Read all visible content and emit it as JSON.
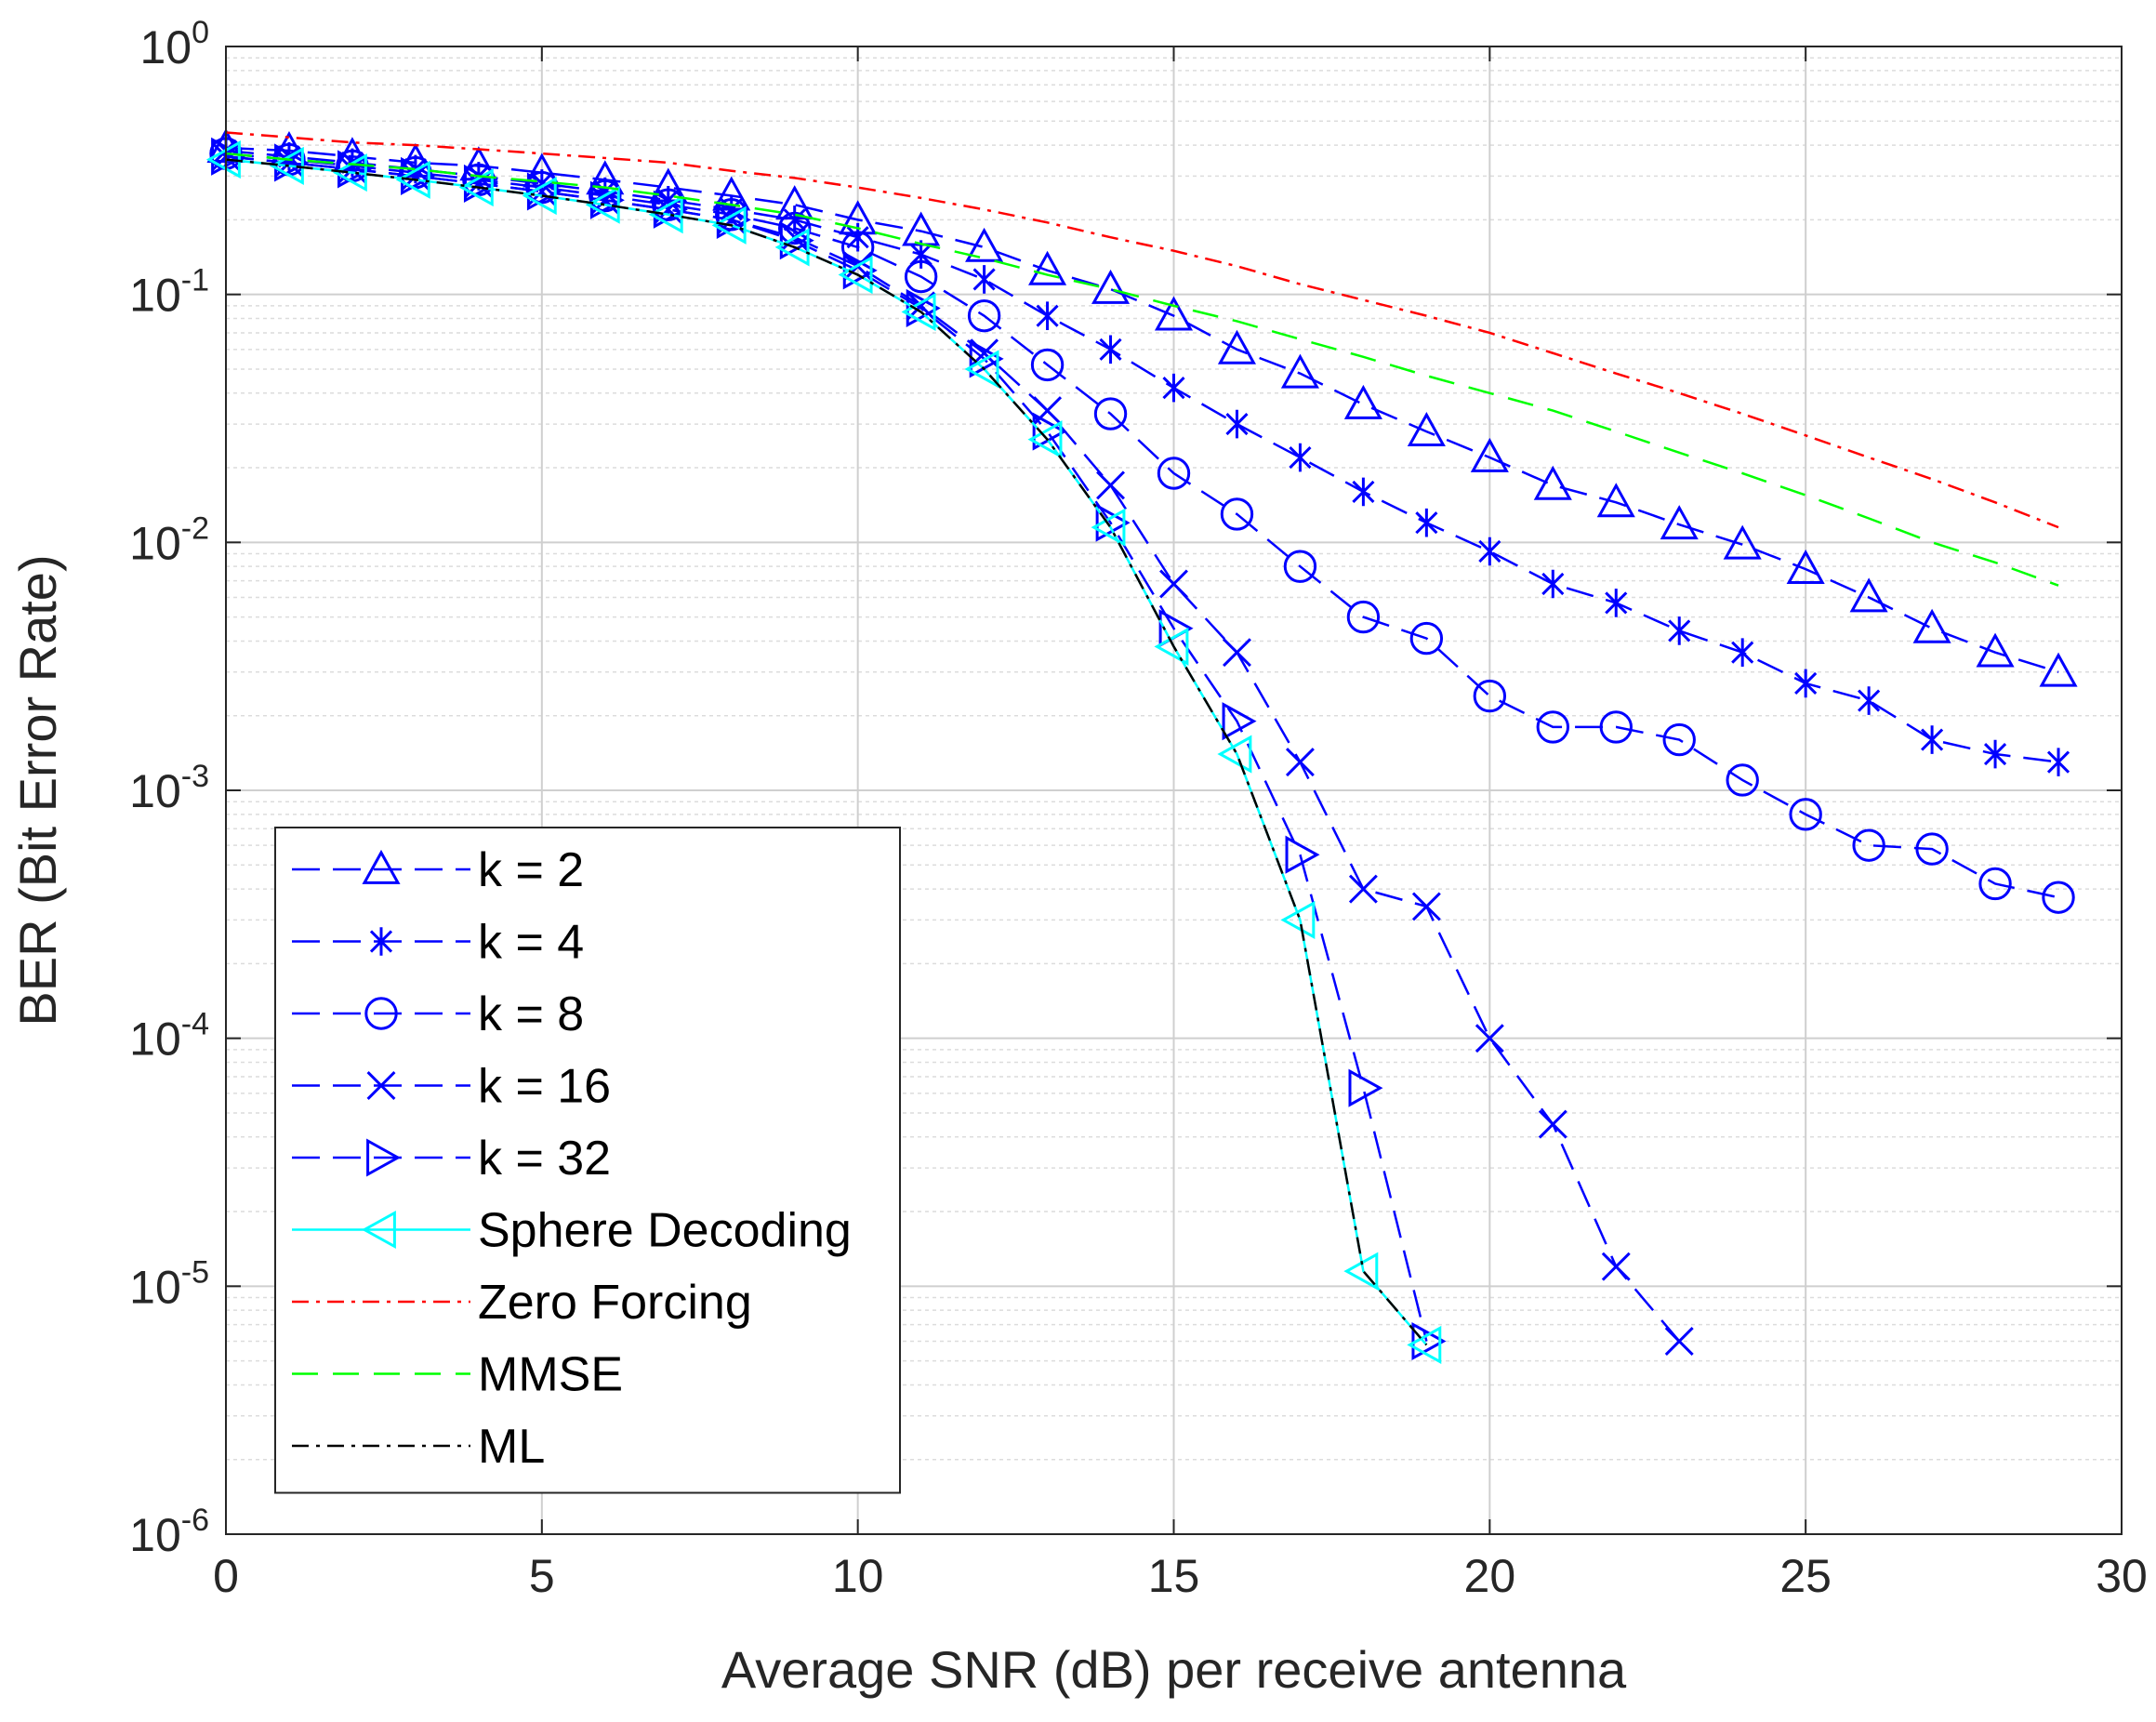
{
  "chart_data": {
    "type": "line",
    "title": "",
    "xlabel": "Average SNR (dB) per receive antenna",
    "ylabel": "BER (Bit Error Rate)",
    "xlim": [
      0,
      30
    ],
    "ylim": [
      1e-06,
      1
    ],
    "yscale": "log",
    "grid": true,
    "legend_position": "bottom-left",
    "x_ticks": [
      "0",
      "5",
      "10",
      "15",
      "20",
      "25",
      "30"
    ],
    "y_ticks": [
      {
        "base": "10",
        "exp": "0"
      },
      {
        "base": "10",
        "exp": "-1"
      },
      {
        "base": "10",
        "exp": "-2"
      },
      {
        "base": "10",
        "exp": "-3"
      },
      {
        "base": "10",
        "exp": "-4"
      },
      {
        "base": "10",
        "exp": "-5"
      },
      {
        "base": "10",
        "exp": "-6"
      }
    ],
    "series": [
      {
        "name": "k = 2",
        "color": "#0000ff",
        "dash": "long-dash",
        "marker": "triangle-up",
        "x": [
          0,
          1,
          2,
          3,
          4,
          5,
          6,
          7,
          8,
          9,
          10,
          11,
          12,
          13,
          14,
          15,
          16,
          17,
          18,
          19,
          20,
          21,
          22,
          23,
          24,
          25,
          26,
          27,
          28,
          29
        ],
        "y": [
          0.39,
          0.38,
          0.36,
          0.34,
          0.33,
          0.31,
          0.29,
          0.27,
          0.25,
          0.23,
          0.2,
          0.18,
          0.155,
          0.125,
          0.105,
          0.082,
          0.06,
          0.048,
          0.036,
          0.028,
          0.022,
          0.017,
          0.0145,
          0.0118,
          0.0098,
          0.0078,
          0.006,
          0.0045,
          0.0036,
          0.003
        ]
      },
      {
        "name": "k = 4",
        "color": "#0000ff",
        "dash": "long-dash",
        "marker": "asterisk",
        "x": [
          0,
          1,
          2,
          3,
          4,
          5,
          6,
          7,
          8,
          9,
          10,
          11,
          12,
          13,
          14,
          15,
          16,
          17,
          18,
          19,
          20,
          21,
          22,
          23,
          24,
          25,
          26,
          27,
          28,
          29
        ],
        "y": [
          0.38,
          0.36,
          0.34,
          0.32,
          0.3,
          0.28,
          0.26,
          0.24,
          0.22,
          0.2,
          0.17,
          0.145,
          0.115,
          0.082,
          0.06,
          0.042,
          0.03,
          0.022,
          0.016,
          0.012,
          0.0092,
          0.0068,
          0.0057,
          0.0044,
          0.0036,
          0.0027,
          0.0023,
          0.0016,
          0.0014,
          0.0013
        ]
      },
      {
        "name": "k = 8",
        "color": "#0000ff",
        "dash": "long-dash",
        "marker": "circle",
        "x": [
          0,
          1,
          2,
          3,
          4,
          5,
          6,
          7,
          8,
          9,
          10,
          11,
          12,
          13,
          14,
          15,
          16,
          17,
          18,
          19,
          20,
          21,
          22,
          23,
          24,
          25,
          26,
          27,
          28,
          29
        ],
        "y": [
          0.37,
          0.35,
          0.33,
          0.31,
          0.29,
          0.27,
          0.25,
          0.23,
          0.21,
          0.185,
          0.155,
          0.118,
          0.082,
          0.052,
          0.033,
          0.019,
          0.013,
          0.008,
          0.005,
          0.0041,
          0.0024,
          0.0018,
          0.0018,
          0.0016,
          0.0011,
          0.0008,
          0.0006,
          0.00058,
          0.00042,
          0.00037
        ]
      },
      {
        "name": "k = 16",
        "color": "#0000ff",
        "dash": "long-dash",
        "marker": "x",
        "x": [
          0,
          1,
          2,
          3,
          4,
          5,
          6,
          7,
          8,
          9,
          10,
          11,
          12,
          13,
          14,
          15,
          16,
          17,
          18,
          19,
          20,
          21,
          22,
          23
        ],
        "y": [
          0.36,
          0.34,
          0.32,
          0.3,
          0.28,
          0.26,
          0.24,
          0.22,
          0.2,
          0.17,
          0.13,
          0.09,
          0.058,
          0.034,
          0.017,
          0.0068,
          0.0036,
          0.0013,
          0.0004,
          0.00034,
          0.0001,
          4.5e-05,
          1.2e-05,
          6e-06
        ]
      },
      {
        "name": "k = 32",
        "color": "#0000ff",
        "dash": "long-dash",
        "marker": "triangle-right",
        "x": [
          0,
          1,
          2,
          3,
          4,
          5,
          6,
          7,
          8,
          9,
          10,
          11,
          12,
          13,
          14,
          15,
          16,
          17,
          18,
          19
        ],
        "y": [
          0.36,
          0.34,
          0.32,
          0.3,
          0.28,
          0.26,
          0.24,
          0.22,
          0.2,
          0.165,
          0.125,
          0.088,
          0.055,
          0.028,
          0.012,
          0.0045,
          0.0019,
          0.00055,
          6.3e-05,
          6e-06
        ]
      },
      {
        "name": "Sphere Decoding",
        "color": "#00ffff",
        "dash": "solid",
        "marker": "triangle-left",
        "x": [
          0,
          1,
          2,
          3,
          4,
          5,
          6,
          7,
          8,
          9,
          10,
          11,
          12,
          13,
          14,
          15,
          16,
          17,
          18,
          19
        ],
        "y": [
          0.35,
          0.33,
          0.31,
          0.29,
          0.27,
          0.25,
          0.23,
          0.21,
          0.19,
          0.155,
          0.12,
          0.085,
          0.05,
          0.026,
          0.0115,
          0.0038,
          0.0014,
          0.0003,
          1.15e-05,
          5.8e-06
        ]
      },
      {
        "name": "Zero Forcing",
        "color": "#ff0000",
        "dash": "dash-dot",
        "marker": "none",
        "x": [
          0,
          1,
          2,
          3,
          4,
          5,
          6,
          7,
          8,
          9,
          10,
          11,
          12,
          13,
          14,
          15,
          16,
          17,
          18,
          19,
          20,
          21,
          22,
          23,
          24,
          25,
          26,
          27,
          28,
          29
        ],
        "y": [
          0.45,
          0.43,
          0.41,
          0.4,
          0.385,
          0.37,
          0.355,
          0.34,
          0.315,
          0.295,
          0.27,
          0.245,
          0.22,
          0.195,
          0.17,
          0.15,
          0.13,
          0.11,
          0.095,
          0.082,
          0.07,
          0.058,
          0.048,
          0.04,
          0.033,
          0.027,
          0.022,
          0.018,
          0.0145,
          0.0115
        ]
      },
      {
        "name": "MMSE",
        "color": "#00ff00",
        "dash": "dashed",
        "marker": "none",
        "x": [
          0,
          1,
          2,
          3,
          4,
          5,
          6,
          7,
          8,
          9,
          10,
          11,
          12,
          13,
          14,
          15,
          16,
          17,
          18,
          19,
          20,
          21,
          22,
          23,
          24,
          25,
          26,
          27,
          28,
          29
        ],
        "y": [
          0.37,
          0.35,
          0.335,
          0.32,
          0.3,
          0.285,
          0.27,
          0.25,
          0.23,
          0.21,
          0.185,
          0.16,
          0.14,
          0.12,
          0.105,
          0.09,
          0.078,
          0.066,
          0.056,
          0.047,
          0.04,
          0.034,
          0.028,
          0.023,
          0.019,
          0.0155,
          0.0125,
          0.01,
          0.0083,
          0.0067
        ]
      },
      {
        "name": "ML",
        "color": "#000000",
        "dash": "dash-dot",
        "marker": "none",
        "x": [
          0,
          1,
          2,
          3,
          4,
          5,
          6,
          7,
          8,
          9,
          10,
          11,
          12,
          13,
          14,
          15,
          16,
          17,
          18,
          19
        ],
        "y": [
          0.35,
          0.33,
          0.31,
          0.29,
          0.27,
          0.25,
          0.23,
          0.21,
          0.19,
          0.155,
          0.12,
          0.085,
          0.05,
          0.026,
          0.0115,
          0.0038,
          0.0014,
          0.0003,
          1.15e-05,
          5.8e-06
        ]
      }
    ]
  }
}
